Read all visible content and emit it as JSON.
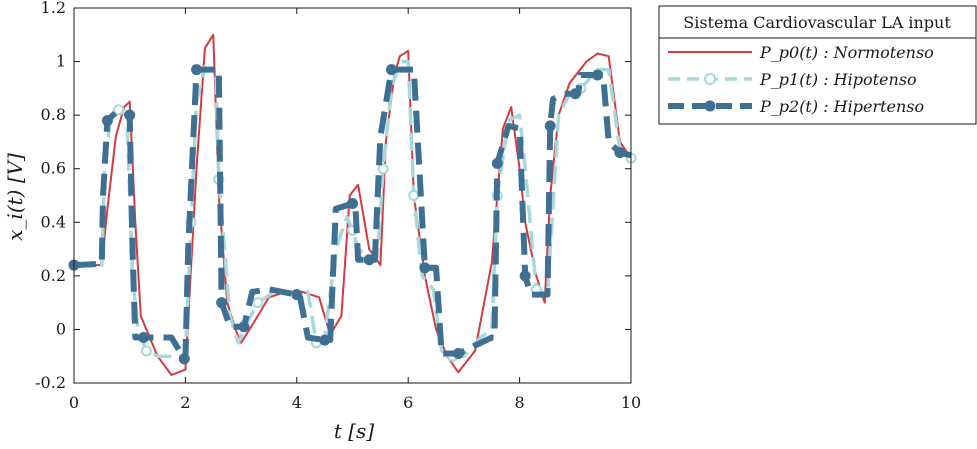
{
  "chart_data": {
    "type": "line",
    "xlabel": "t [s]",
    "ylabel": "x_i(t) [V]",
    "xlim": [
      0,
      10
    ],
    "ylim": [
      -0.2,
      1.2
    ],
    "x_ticks": [
      "0",
      "2",
      "4",
      "6",
      "8",
      "10"
    ],
    "y_ticks": [
      "-0.2",
      "0",
      "0.2",
      "0.4",
      "0.6",
      "0.8",
      "1",
      "1.2"
    ],
    "grid": false,
    "legend": {
      "title": "Sistema Cardiovascular LA input",
      "position": "outside-top-right",
      "entries": [
        "P_p0(t) : Normotenso",
        "P_p1(t) : Hipotenso",
        "P_p2(t) : Hipertenso"
      ]
    },
    "series": [
      {
        "name": "P_p0(t) : Normotenso",
        "color": "#d63a3f",
        "style": "solid",
        "x": [
          0,
          0.5,
          0.6,
          0.75,
          0.9,
          1.0,
          1.1,
          1.2,
          1.5,
          1.75,
          2.0,
          2.2,
          2.35,
          2.5,
          2.6,
          2.75,
          2.9,
          3.0,
          3.3,
          3.5,
          3.8,
          4.1,
          4.4,
          4.6,
          4.8,
          4.95,
          5.1,
          5.3,
          5.5,
          5.6,
          5.75,
          5.85,
          6.0,
          6.1,
          6.3,
          6.5,
          6.7,
          6.9,
          7.2,
          7.5,
          7.7,
          7.85,
          8.0,
          8.1,
          8.3,
          8.45,
          8.55,
          8.7,
          8.9,
          9.2,
          9.4,
          9.6,
          9.8,
          10.0
        ],
        "y": [
          0.24,
          0.24,
          0.45,
          0.72,
          0.83,
          0.85,
          0.4,
          0.05,
          -0.1,
          -0.17,
          -0.15,
          0.6,
          1.05,
          1.1,
          0.5,
          0.1,
          0.0,
          -0.05,
          0.05,
          0.12,
          0.14,
          0.14,
          0.12,
          -0.02,
          0.05,
          0.5,
          0.54,
          0.3,
          0.24,
          0.7,
          0.95,
          1.02,
          1.04,
          0.5,
          0.2,
          0.0,
          -0.1,
          -0.16,
          -0.08,
          0.25,
          0.75,
          0.83,
          0.6,
          0.4,
          0.2,
          0.1,
          0.5,
          0.8,
          0.92,
          1.0,
          1.03,
          1.02,
          0.7,
          0.64
        ]
      },
      {
        "name": "P_p1(t) : Hipotenso",
        "color": "#a8d8dc",
        "style": "dashed",
        "x": [
          0,
          0.5,
          0.55,
          0.65,
          0.8,
          0.95,
          1.05,
          1.15,
          1.3,
          1.5,
          1.75,
          2.0,
          2.1,
          2.2,
          2.35,
          2.55,
          2.6,
          2.8,
          2.95,
          3.1,
          3.3,
          3.6,
          3.9,
          4.2,
          4.35,
          4.5,
          4.7,
          4.9,
          5.0,
          5.1,
          5.3,
          5.45,
          5.55,
          5.7,
          5.85,
          6.0,
          6.1,
          6.25,
          6.45,
          6.6,
          6.8,
          7.0,
          7.3,
          7.5,
          7.6,
          7.8,
          8.0,
          8.1,
          8.3,
          8.5,
          8.7,
          8.9,
          9.1,
          9.4,
          9.6,
          9.8,
          10.0
        ],
        "y": [
          0.24,
          0.24,
          0.6,
          0.78,
          0.82,
          0.8,
          0.2,
          0.0,
          -0.08,
          -0.1,
          -0.1,
          -0.1,
          0.4,
          0.85,
          0.98,
          0.95,
          0.56,
          0.05,
          -0.05,
          0.02,
          0.1,
          0.14,
          0.14,
          0.14,
          -0.05,
          -0.03,
          0.3,
          0.42,
          0.37,
          0.3,
          0.27,
          0.27,
          0.6,
          0.9,
          1.0,
          1.0,
          0.5,
          0.2,
          0.15,
          -0.08,
          -0.1,
          -0.1,
          -0.03,
          0.0,
          0.5,
          0.78,
          0.8,
          0.6,
          0.15,
          0.13,
          0.8,
          0.88,
          0.9,
          0.97,
          0.97,
          0.67,
          0.64
        ]
      },
      {
        "name": "P_p2(t) : Hipertenso",
        "color": "#3f6f92",
        "style": "dash-dot-markers",
        "x": [
          0,
          0.5,
          0.52,
          0.6,
          0.75,
          0.9,
          1.0,
          1.05,
          1.1,
          1.25,
          1.5,
          1.75,
          1.98,
          2.0,
          2.05,
          2.2,
          2.5,
          2.6,
          2.65,
          2.8,
          3.0,
          3.05,
          3.2,
          3.5,
          4.0,
          4.05,
          4.2,
          4.5,
          4.6,
          4.7,
          5.0,
          5.05,
          5.1,
          5.3,
          5.4,
          5.5,
          5.7,
          6.0,
          6.1,
          6.3,
          6.5,
          6.6,
          6.9,
          7.5,
          7.55,
          7.6,
          7.8,
          8.0,
          8.1,
          8.2,
          8.5,
          8.55,
          8.6,
          8.8,
          9.0,
          9.05,
          9.1,
          9.4,
          9.5,
          9.6,
          9.8,
          10.0
        ],
        "y": [
          0.24,
          0.245,
          0.5,
          0.78,
          0.81,
          0.81,
          0.8,
          0.3,
          -0.03,
          -0.03,
          -0.03,
          -0.03,
          -0.11,
          -0.11,
          0.3,
          0.97,
          0.97,
          0.97,
          0.1,
          0.01,
          0.01,
          0.01,
          0.14,
          0.15,
          0.13,
          0.13,
          -0.03,
          -0.04,
          -0.04,
          0.45,
          0.47,
          0.47,
          0.26,
          0.26,
          0.26,
          0.72,
          0.97,
          0.97,
          0.97,
          0.23,
          0.23,
          -0.09,
          -0.09,
          -0.03,
          -0.03,
          0.62,
          0.76,
          0.75,
          0.2,
          0.13,
          0.13,
          0.76,
          0.86,
          0.88,
          0.88,
          0.88,
          0.95,
          0.95,
          0.95,
          0.7,
          0.66,
          0.65
        ]
      }
    ]
  }
}
